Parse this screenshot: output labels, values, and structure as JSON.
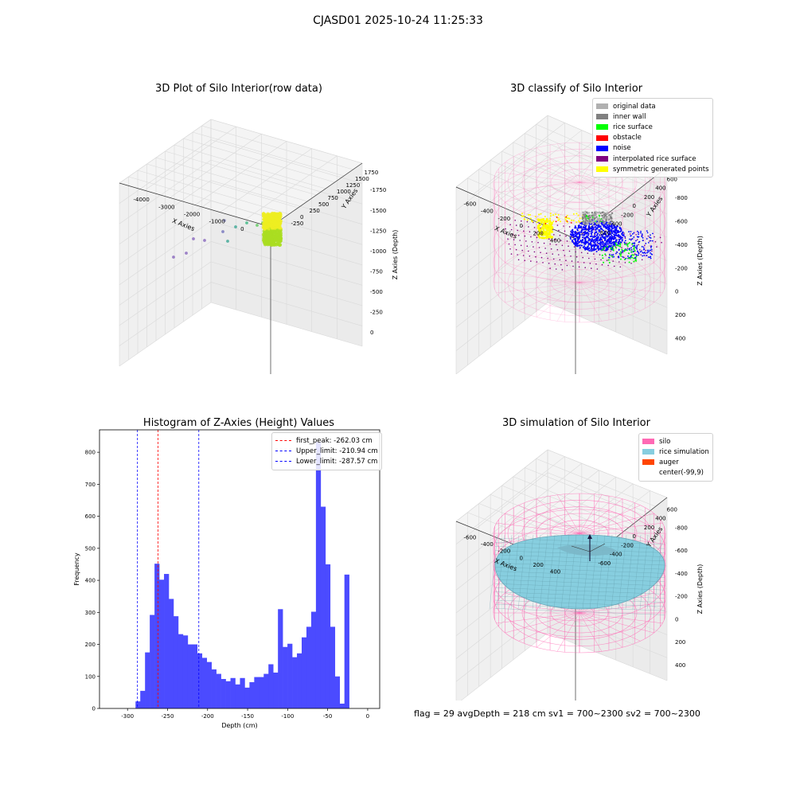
{
  "page": {
    "suptitle": "CJASD01 2025-10-24 11:25:33",
    "footer": "flag = 29  avgDepth = 218 cm  sv1 = 700~2300  sv2 = 700~2300"
  },
  "colors": {
    "silo": "#ff69b4",
    "rice": "#87cedf",
    "auger": "#ff4500",
    "noise": "#0000ff",
    "rice_surface": "#00ff00",
    "inner_wall": "#808080",
    "original": "#b0b0b0",
    "obstacle": "#ff0000",
    "interp": "#800080",
    "sym": "#ffff00",
    "hist": "#4b4bff"
  },
  "chart_data": [
    {
      "type": "scatter",
      "subtype": "3d",
      "title": "3D Plot of Silo Interior(row data)",
      "xlabel": "X Axies",
      "ylabel": "Y Axies",
      "zlabel": "Z Axies (Depth)",
      "xlim": [
        -4300,
        300
      ],
      "ylim": [
        -300,
        1800
      ],
      "zlim": [
        -1900,
        100
      ],
      "xticks": [
        "-4000",
        "-3000",
        "-2000",
        "-1000",
        "0"
      ],
      "yticks": [
        "-250",
        "0",
        "250",
        "500",
        "750",
        "1000",
        "1250",
        "1500",
        "1750"
      ],
      "zticks": [
        "0",
        "-250",
        "-500",
        "-750",
        "-1000",
        "-1250",
        "-1500",
        "-1750"
      ]
    },
    {
      "type": "scatter",
      "subtype": "3d",
      "title": "3D classify of Silo Interior",
      "xlabel": "X Axies",
      "ylabel": "Y Axies",
      "zlabel": "Z Axies (Depth)",
      "xlim": [
        -700,
        500
      ],
      "ylim": [
        -650,
        650
      ],
      "zlim": [
        -900,
        450
      ],
      "xticks": [
        "-600",
        "-400",
        "-200",
        "0",
        "200",
        "400"
      ],
      "yticks": [
        "-600",
        "-400",
        "-200",
        "0",
        "200",
        "400",
        "600"
      ],
      "zticks": [
        "400",
        "200",
        "0",
        "-200",
        "-400",
        "-600",
        "-800"
      ],
      "legend_position": "top-right",
      "legend": [
        {
          "label": "original data",
          "color": "#b0b0b0"
        },
        {
          "label": "inner wall",
          "color": "#808080"
        },
        {
          "label": "rice surface",
          "color": "#00ff00"
        },
        {
          "label": "obstacle",
          "color": "#ff0000"
        },
        {
          "label": "noise",
          "color": "#0000ff"
        },
        {
          "label": "interpolated rice surface",
          "color": "#800080"
        },
        {
          "label": "symmetric generated points",
          "color": "#ffff00"
        }
      ]
    },
    {
      "type": "bar",
      "subtype": "histogram",
      "title": "Histogram of Z-Axies (Height) Values",
      "xlabel": "Depth (cm)",
      "ylabel": "Frequency",
      "xlim": [
        -335,
        15
      ],
      "ylim": [
        0,
        870
      ],
      "xticks": [
        -300,
        -250,
        -200,
        -150,
        -100,
        -50,
        0
      ],
      "yticks": [
        0,
        100,
        200,
        300,
        400,
        500,
        600,
        700,
        800
      ],
      "bin_start": -290,
      "bin_width": 5.93,
      "values": [
        22,
        55,
        175,
        292,
        452,
        402,
        420,
        342,
        288,
        232,
        228,
        200,
        200,
        172,
        158,
        145,
        122,
        108,
        92,
        85,
        95,
        75,
        95,
        65,
        82,
        98,
        98,
        108,
        138,
        112,
        310,
        192,
        202,
        160,
        172,
        222,
        255,
        302,
        832,
        630,
        450,
        255,
        100,
        15,
        418
      ],
      "vlines": [
        {
          "x": -262.03,
          "label": "first_peak: -262.03 cm",
          "color": "#ff0000"
        },
        {
          "x": -210.94,
          "label": "Upper_limit: -210.94 cm",
          "color": "#0000ff"
        },
        {
          "x": -287.57,
          "label": "Lower_limit: -287.57 cm",
          "color": "#0000ff"
        }
      ],
      "legend_position": "top-right"
    },
    {
      "type": "area",
      "subtype": "3d-surface",
      "title": "3D simulation of Silo Interior",
      "xlabel": "X Axies",
      "ylabel": "Y Axies",
      "zlabel": "Z Axies (Depth)",
      "xlim": [
        -700,
        500
      ],
      "ylim": [
        -650,
        650
      ],
      "zlim": [
        -900,
        450
      ],
      "xticks": [
        "-600",
        "-400",
        "-200",
        "0",
        "200",
        "400"
      ],
      "yticks": [
        "-600",
        "-400",
        "-200",
        "0",
        "200",
        "400",
        "600"
      ],
      "zticks": [
        "400",
        "200",
        "0",
        "-200",
        "-400",
        "-600",
        "-800"
      ],
      "legend_position": "top-right",
      "legend": [
        {
          "label": "silo",
          "color": "#ff69b4"
        },
        {
          "label": "rice simulation",
          "color": "#87cedf"
        },
        {
          "label": "auger",
          "color": "#ff4500"
        },
        {
          "label": "center(-99,9)",
          "color": "#ffffff"
        }
      ]
    }
  ]
}
